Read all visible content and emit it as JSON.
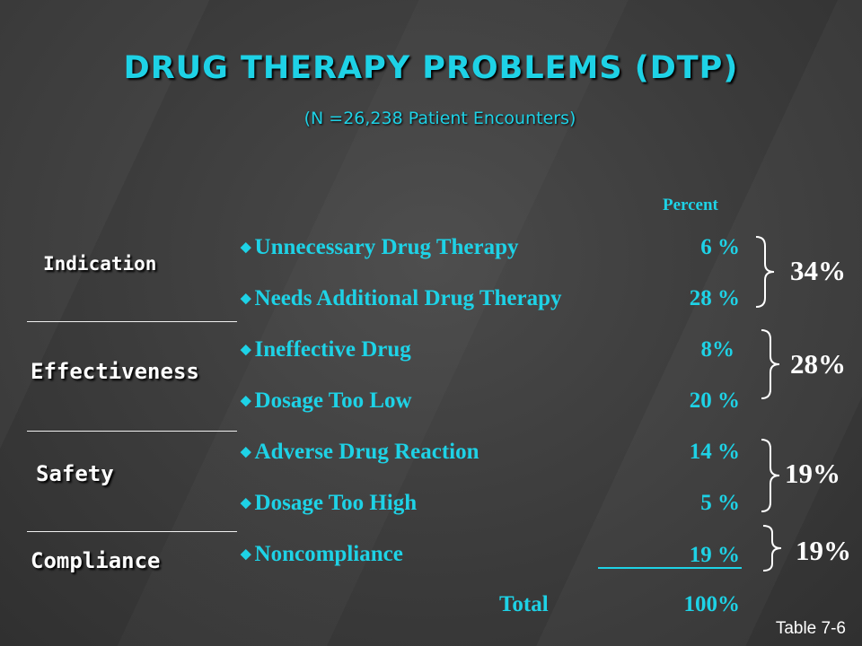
{
  "slide": {
    "title": "DRUG THERAPY PROBLEMS (DTP)",
    "subtitle": "(N =26,238  Patient Encounters)",
    "percent_header": "Percent",
    "categories": {
      "indication": "Indication",
      "effectiveness": "Effectiveness",
      "safety": "Safety",
      "compliance": "Compliance"
    },
    "items": [
      {
        "label": "Unnecessary Drug Therapy",
        "value": "6 %"
      },
      {
        "label": "Needs Additional Drug Therapy",
        "value": "28 %"
      },
      {
        "label": "Ineffective Drug",
        "value": "8%"
      },
      {
        "label": "Dosage Too Low",
        "value": "20 %"
      },
      {
        "label": "Adverse Drug Reaction",
        "value": "14 %"
      },
      {
        "label": "Dosage Too High",
        "value": "5 %"
      },
      {
        "label": "Noncompliance",
        "value": "19 %"
      }
    ],
    "total_label": "Total",
    "total_value": "100%",
    "group_totals": [
      "34%",
      "28%",
      "19%",
      "19%"
    ],
    "table_ref": "Table 7-6",
    "bullet_glyph": "◆",
    "colors": {
      "accent": "#1ed2e6",
      "background": "#3f3f3f",
      "text": "#ffffff"
    }
  }
}
